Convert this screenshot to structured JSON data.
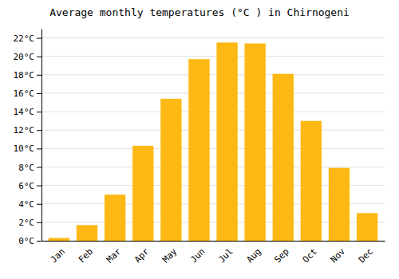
{
  "chart_data": {
    "type": "bar",
    "title": "Average monthly temperatures (°C ) in Chirnogeni",
    "categories": [
      "Jan",
      "Feb",
      "Mar",
      "Apr",
      "May",
      "Jun",
      "Jul",
      "Aug",
      "Sep",
      "Oct",
      "Nov",
      "Dec"
    ],
    "values": [
      0.3,
      1.7,
      5.0,
      10.3,
      15.4,
      19.7,
      21.5,
      21.4,
      18.1,
      13.0,
      7.9,
      3.0
    ],
    "color": "#FDB813",
    "ylim": [
      0,
      23
    ],
    "yticks": [
      {
        "value": 0,
        "label": "0°C"
      },
      {
        "value": 2,
        "label": "2°C"
      },
      {
        "value": 4,
        "label": "4°C"
      },
      {
        "value": 6,
        "label": "6°C"
      },
      {
        "value": 8,
        "label": "8°C"
      },
      {
        "value": 10,
        "label": "10°C"
      },
      {
        "value": 12,
        "label": "12°C"
      },
      {
        "value": 14,
        "label": "14°C"
      },
      {
        "value": 16,
        "label": "16°C"
      },
      {
        "value": 18,
        "label": "18°C"
      },
      {
        "value": 20,
        "label": "20°C"
      },
      {
        "value": 22,
        "label": "22°C"
      }
    ],
    "grid": true
  }
}
